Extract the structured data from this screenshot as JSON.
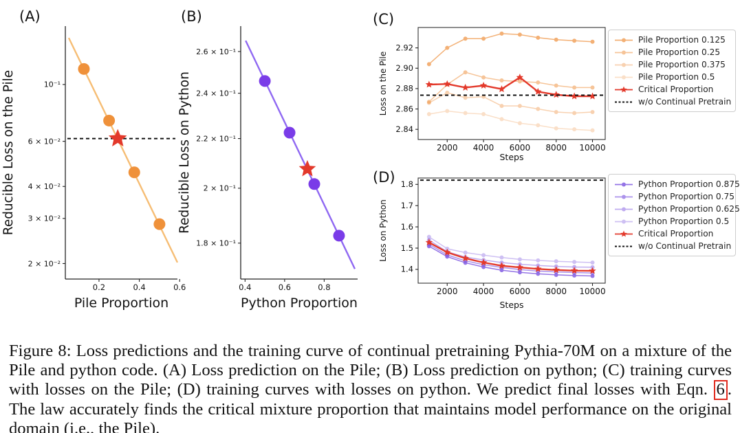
{
  "figure": {
    "background": "#ffffff",
    "accent_red": "#e3392b",
    "accent_orange": "#ee8f3c",
    "accent_purple": "#7a3ce8"
  },
  "chart_data": [
    {
      "id": "A",
      "panel_label": "(A)",
      "type": "scatter",
      "xlabel": "Pile Proportion",
      "ylabel": "Reducible Loss on the Pile",
      "xscale": "linear",
      "yscale": "log",
      "xlim": [
        0.033,
        0.589
      ],
      "ylim": [
        0.0174,
        0.169
      ],
      "grid": false,
      "xticks": [
        {
          "v": 0.2,
          "label": "0.2"
        },
        {
          "v": 0.4,
          "label": "0.4"
        },
        {
          "v": 0.6,
          "label": "0.6"
        }
      ],
      "yticks": [
        {
          "v": 0.1,
          "label": "10⁻¹"
        },
        {
          "v": 0.06,
          "label": "6 × 10⁻²"
        },
        {
          "v": 0.04,
          "label": "4 × 10⁻²"
        },
        {
          "v": 0.03,
          "label": "3 × 10⁻²"
        },
        {
          "v": 0.02,
          "label": "2 × 10⁻²"
        }
      ],
      "trend": {
        "x1": 0.05,
        "y1": 0.152,
        "x2": 0.589,
        "y2": 0.0202,
        "color": "#f6bd74"
      },
      "points": {
        "x": [
          0.125,
          0.25,
          0.375,
          0.5
        ],
        "y": [
          0.115,
          0.0723,
          0.0454,
          0.0285
        ],
        "color": "#ef913a"
      },
      "star": {
        "x": 0.293,
        "y": 0.0615,
        "color": "#e3392b"
      },
      "hline": {
        "y": 0.0615,
        "style": "dashed",
        "color": "#111111"
      }
    },
    {
      "id": "B",
      "panel_label": "(B)",
      "type": "scatter",
      "xlabel": "Python Proportion",
      "ylabel": "Reducible Loss on Python",
      "xscale": "linear",
      "yscale": "log",
      "xlim": [
        0.378,
        0.969
      ],
      "ylim": [
        0.168,
        0.273
      ],
      "grid": false,
      "xticks": [
        {
          "v": 0.4,
          "label": "0.4"
        },
        {
          "v": 0.6,
          "label": "0.6"
        },
        {
          "v": 0.8,
          "label": "0.8"
        }
      ],
      "yticks": [
        {
          "v": 0.26,
          "label": "2.6 × 10⁻¹"
        },
        {
          "v": 0.24,
          "label": "2.4 × 10⁻¹"
        },
        {
          "v": 0.22,
          "label": "2.2 × 10⁻¹"
        },
        {
          "v": 0.2,
          "label": "2 × 10⁻¹"
        },
        {
          "v": 0.18,
          "label": "1.8 × 10⁻¹"
        }
      ],
      "trend": {
        "x1": 0.403,
        "y1": 0.2655,
        "x2": 0.955,
        "y2": 0.1713,
        "color": "#8f68f2"
      },
      "points": {
        "x": [
          0.5,
          0.625,
          0.75,
          0.875
        ],
        "y": [
          0.2457,
          0.2225,
          0.2016,
          0.1826
        ],
        "color": "#7a3ce8"
      },
      "star": {
        "x": 0.715,
        "y": 0.2075,
        "color": "#e3392b"
      }
    },
    {
      "id": "C",
      "panel_label": "(C)",
      "type": "line",
      "xlabel": "Steps",
      "ylabel": "Loss on the Pile",
      "xscale": "linear",
      "yscale": "linear",
      "xlim": [
        400,
        10700
      ],
      "ylim": [
        2.83,
        2.94
      ],
      "grid": false,
      "x": [
        1000,
        2000,
        3000,
        4000,
        5000,
        6000,
        7000,
        8000,
        9000,
        10000
      ],
      "xticks": [
        {
          "v": 2000,
          "label": "2000"
        },
        {
          "v": 4000,
          "label": "4000"
        },
        {
          "v": 6000,
          "label": "6000"
        },
        {
          "v": 8000,
          "label": "8000"
        },
        {
          "v": 10000,
          "label": "10000"
        }
      ],
      "yticks": [
        {
          "v": 2.84,
          "label": "2.84"
        },
        {
          "v": 2.86,
          "label": "2.86"
        },
        {
          "v": 2.88,
          "label": "2.88"
        },
        {
          "v": 2.9,
          "label": "2.90"
        },
        {
          "v": 2.92,
          "label": "2.92"
        }
      ],
      "series": [
        {
          "name": "Pile Proportion 0.125",
          "color": "#ee8f3c",
          "opacity": 0.7,
          "marker": "dot",
          "values": [
            2.904,
            2.92,
            2.929,
            2.929,
            2.934,
            2.933,
            2.93,
            2.928,
            2.927,
            2.926
          ]
        },
        {
          "name": "Pile Proportion 0.25",
          "color": "#ee8f3c",
          "opacity": 0.52,
          "marker": "dot",
          "values": [
            2.867,
            2.884,
            2.896,
            2.891,
            2.888,
            2.887,
            2.886,
            2.883,
            2.881,
            2.881
          ]
        },
        {
          "name": "Pile Proportion 0.375",
          "color": "#ee8f3c",
          "opacity": 0.4,
          "marker": "dot",
          "values": [
            2.866,
            2.876,
            2.871,
            2.872,
            2.863,
            2.863,
            2.86,
            2.857,
            2.856,
            2.857
          ]
        },
        {
          "name": "Pile Proportion 0.5",
          "color": "#ee8f3c",
          "opacity": 0.28,
          "marker": "dot",
          "values": [
            2.855,
            2.858,
            2.856,
            2.855,
            2.85,
            2.846,
            2.844,
            2.841,
            2.84,
            2.839
          ]
        },
        {
          "name": "Critical Proportion",
          "color": "#e3392b",
          "opacity": 1,
          "marker": "star",
          "values": [
            2.884,
            2.8845,
            2.881,
            2.883,
            2.8795,
            2.891,
            2.877,
            2.874,
            2.8725,
            2.8725
          ]
        }
      ],
      "hline": {
        "y": 2.8735,
        "style": "dashed",
        "color": "#111111",
        "label": "w/o Continual Pretrain"
      },
      "legend_position": "right"
    },
    {
      "id": "D",
      "panel_label": "(D)",
      "type": "line",
      "xlabel": "Steps",
      "ylabel": "Loss on Python",
      "xscale": "linear",
      "yscale": "linear",
      "xlim": [
        400,
        10700
      ],
      "ylim": [
        1.335,
        1.83
      ],
      "grid": false,
      "x": [
        1000,
        2000,
        3000,
        4000,
        5000,
        6000,
        7000,
        8000,
        9000,
        10000
      ],
      "xticks": [
        {
          "v": 2000,
          "label": "2000"
        },
        {
          "v": 4000,
          "label": "4000"
        },
        {
          "v": 6000,
          "label": "6000"
        },
        {
          "v": 8000,
          "label": "8000"
        },
        {
          "v": 10000,
          "label": "10000"
        }
      ],
      "yticks": [
        {
          "v": 1.4,
          "label": "1.4"
        },
        {
          "v": 1.5,
          "label": "1.5"
        },
        {
          "v": 1.6,
          "label": "1.6"
        },
        {
          "v": 1.7,
          "label": "1.7"
        },
        {
          "v": 1.8,
          "label": "1.8"
        }
      ],
      "series": [
        {
          "name": "Python Proportion 0.875",
          "color": "#7a52e0",
          "opacity": 0.8,
          "marker": "dot",
          "values": [
            1.509,
            1.46,
            1.431,
            1.411,
            1.396,
            1.386,
            1.379,
            1.374,
            1.371,
            1.369
          ]
        },
        {
          "name": "Python Proportion 0.75",
          "color": "#7a52e0",
          "opacity": 0.62,
          "marker": "dot",
          "values": [
            1.518,
            1.468,
            1.44,
            1.422,
            1.409,
            1.399,
            1.392,
            1.388,
            1.385,
            1.383
          ]
        },
        {
          "name": "Python Proportion 0.625",
          "color": "#7a52e0",
          "opacity": 0.48,
          "marker": "dot",
          "values": [
            1.538,
            1.483,
            1.458,
            1.444,
            1.432,
            1.424,
            1.418,
            1.414,
            1.411,
            1.41
          ]
        },
        {
          "name": "Python Proportion 0.5",
          "color": "#7a52e0",
          "opacity": 0.36,
          "marker": "dot",
          "values": [
            1.553,
            1.497,
            1.479,
            1.467,
            1.456,
            1.447,
            1.442,
            1.438,
            1.435,
            1.432
          ]
        },
        {
          "name": "Critical Proportion",
          "color": "#e3392b",
          "opacity": 1,
          "marker": "star",
          "values": [
            1.527,
            1.48,
            1.452,
            1.432,
            1.417,
            1.409,
            1.402,
            1.397,
            1.394,
            1.393
          ]
        }
      ],
      "hline": {
        "y": 1.82,
        "style": "dashed",
        "color": "#111111",
        "label": "w/o Continual Pretrain"
      },
      "legend_position": "right"
    }
  ],
  "caption": {
    "part1": "Figure 8: Loss predictions and the training curve of continual pretraining Pythia-70M on a mixture of the Pile and python code. (A) Loss prediction on the Pile; (B) Loss prediction on python; (C) training curves with losses on the Pile; (D) training curves with losses on python. We predict final losses with Eqn. ",
    "ref": "6",
    "part2": ". The law accurately finds the critical mixture proportion that maintains model performance on the original domain (i.e., the Pile)."
  }
}
